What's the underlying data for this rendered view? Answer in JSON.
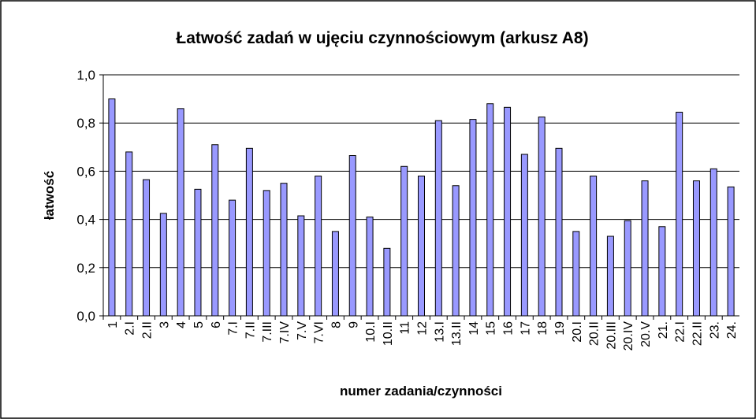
{
  "chart_data": {
    "type": "bar",
    "title": "Łatwość zadań w ujęciu czynnościowym (arkusz A8)",
    "y_label": "łatwość",
    "x_label": "numer zadania/czynności",
    "categories": [
      "1",
      "2.I",
      "2.II",
      "3",
      "4",
      "5",
      "6",
      "7.I",
      "7.II",
      "7.III",
      "7.IV",
      "7.V",
      "7.VI",
      "8",
      "9",
      "10.I",
      "10.II",
      "11",
      "12",
      "13.I",
      "13.II",
      "14",
      "15",
      "16",
      "17",
      "18",
      "19",
      "20.I",
      "20.II",
      "20.III",
      "20.IV",
      "20.V",
      "21.",
      "22.I",
      "22.II",
      "23.",
      "24."
    ],
    "values": [
      0.9,
      0.68,
      0.565,
      0.425,
      0.86,
      0.525,
      0.71,
      0.48,
      0.695,
      0.52,
      0.55,
      0.415,
      0.58,
      0.35,
      0.665,
      0.41,
      0.28,
      0.62,
      0.58,
      0.81,
      0.54,
      0.815,
      0.88,
      0.865,
      0.67,
      0.825,
      0.695,
      0.35,
      0.58,
      0.33,
      0.395,
      0.56,
      0.37,
      0.845,
      0.56,
      0.61,
      0.535
    ],
    "color": "#9999ff",
    "ylim": [
      0,
      1
    ],
    "yticks": [
      {
        "value": 0,
        "label": "0,0"
      },
      {
        "value": 0.2,
        "label": "0,2"
      },
      {
        "value": 0.4,
        "label": "0,4"
      },
      {
        "value": 0.6,
        "label": "0,6"
      },
      {
        "value": 0.8,
        "label": "0,8"
      },
      {
        "value": 1,
        "label": "1,0"
      }
    ],
    "grid": true
  }
}
